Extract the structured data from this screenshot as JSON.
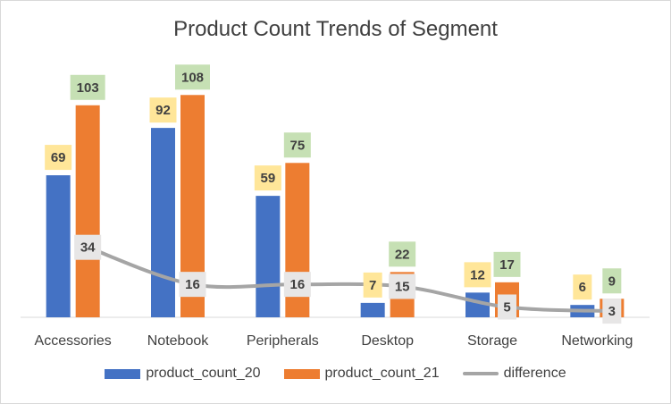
{
  "chart_data": {
    "type": "bar",
    "title": "Product Count Trends of Segment",
    "categories": [
      "Accessories",
      "Notebook",
      "Peripherals",
      "Desktop",
      "Storage",
      "Networking"
    ],
    "series": [
      {
        "name": "product_count_20",
        "kind": "bar",
        "color": "#4472c4",
        "label_bg": "#ffe699",
        "values": [
          69,
          92,
          59,
          7,
          12,
          6
        ]
      },
      {
        "name": "product_count_21",
        "kind": "bar",
        "color": "#ed7d31",
        "label_bg": "#c6e0b4",
        "values": [
          103,
          108,
          75,
          22,
          17,
          9
        ]
      },
      {
        "name": "difference",
        "kind": "line",
        "color": "#a5a5a5",
        "label_bg": "#e7e6e6",
        "values": [
          34,
          16,
          16,
          15,
          5,
          3
        ]
      }
    ],
    "ylim": [
      0,
      120
    ],
    "grid": false,
    "legend": "bottom"
  }
}
